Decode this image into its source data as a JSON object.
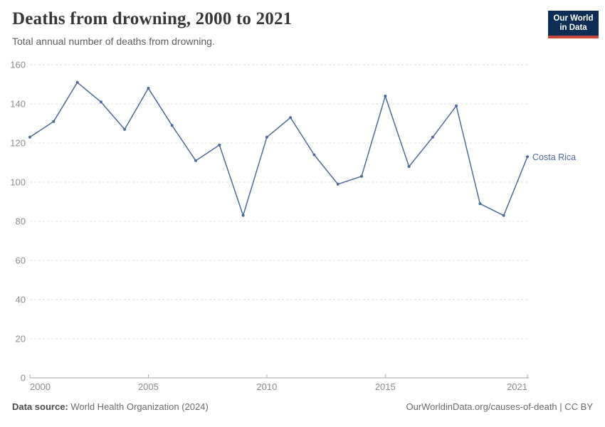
{
  "header": {
    "title": "Deaths from drowning, 2000 to 2021",
    "subtitle": "Total annual number of deaths from drowning.",
    "logo": {
      "line1": "Our World",
      "line2": "in Data",
      "bg_color": "#0E2D55",
      "stripe_color": "#C8473E"
    }
  },
  "chart_data": {
    "type": "line",
    "title": "Deaths from drowning, 2000 to 2021",
    "subtitle": "Total annual number of deaths from drowning.",
    "x": [
      2000,
      2001,
      2002,
      2003,
      2004,
      2005,
      2006,
      2007,
      2008,
      2009,
      2010,
      2011,
      2012,
      2013,
      2014,
      2015,
      2016,
      2017,
      2018,
      2019,
      2020,
      2021
    ],
    "series": [
      {
        "name": "Costa Rica",
        "color": "#4C6A9C",
        "values": [
          123,
          131,
          151,
          141,
          127,
          148,
          129,
          111,
          119,
          83,
          123,
          133,
          114,
          99,
          103,
          144,
          108,
          123,
          139,
          89,
          83,
          113
        ]
      }
    ],
    "xlabel": "",
    "ylabel": "",
    "xlim": [
      2000,
      2021
    ],
    "ylim": [
      0,
      160
    ],
    "x_ticks": [
      2000,
      2005,
      2010,
      2015,
      2021
    ],
    "y_ticks": [
      0,
      20,
      40,
      60,
      80,
      100,
      120,
      140,
      160
    ],
    "grid": "horizontal-dashed",
    "legend_position": "end-of-line-label",
    "colors": {
      "gridline": "#DEDEDE",
      "axis": "#A9A9A9",
      "tick_label": "#8C8C8C"
    }
  },
  "footer": {
    "source_label": "Data source:",
    "source_text": " World Health Organization (2024)",
    "credit": "OurWorldinData.org/causes-of-death | CC BY"
  }
}
